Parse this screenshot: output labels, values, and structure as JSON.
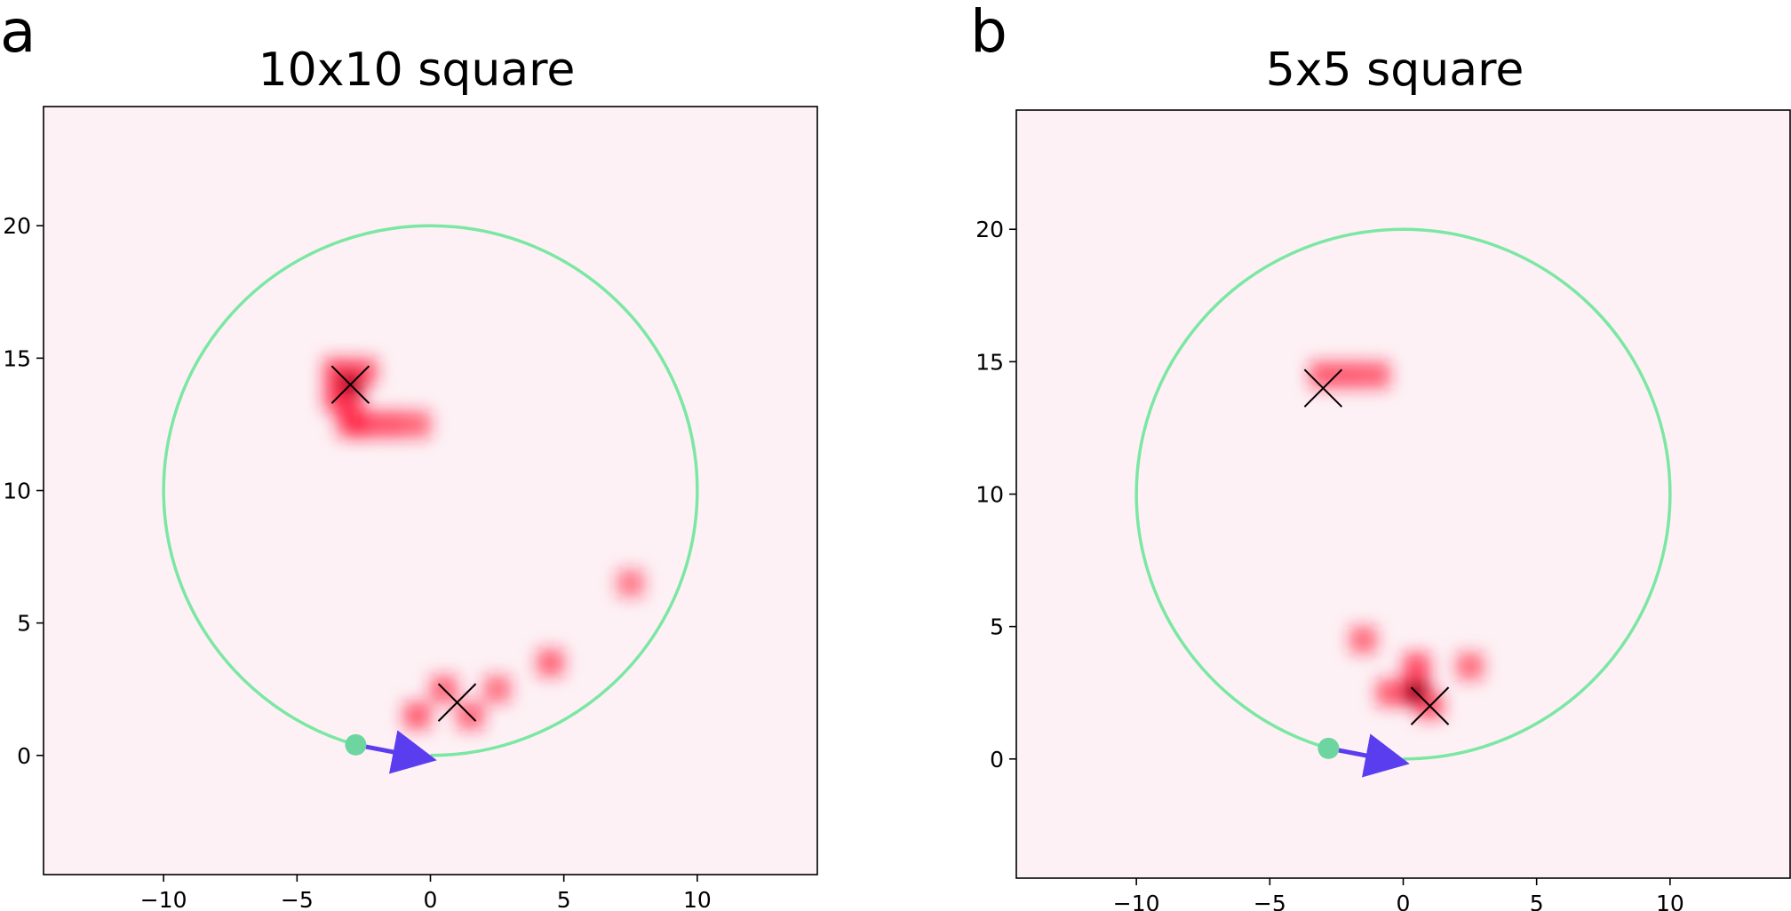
{
  "colors": {
    "background": "#fdf1f5",
    "heat": "#ff1a3c",
    "heat_dark": "#1a0004",
    "circle": "#7be7a3",
    "start_dot": "#6dd6a0",
    "arrow": "#5b3df0",
    "marker": "#000000"
  },
  "chart_data": [
    {
      "type": "heatmap",
      "panel": "a",
      "title": "10x10 square",
      "xlim": [
        -14.5,
        14.5
      ],
      "ylim": [
        -4.5,
        24.5
      ],
      "xticks": [
        -10,
        -5,
        0,
        5,
        10
      ],
      "yticks": [
        0,
        5,
        10,
        15,
        20
      ],
      "xtick_labels": [
        "−10",
        "−5",
        "0",
        "5",
        "10"
      ],
      "ytick_labels": [
        "0",
        "5",
        "10",
        "15",
        "20"
      ],
      "trajectory": {
        "center": [
          0,
          10
        ],
        "radius": 10,
        "gap_start_angle_deg": -105,
        "gap_end_angle_deg": -90
      },
      "start": [
        -2.8,
        0.4
      ],
      "arrow_to": [
        -0.6,
        0.0
      ],
      "markers": [
        [
          -3.0,
          14.0
        ],
        [
          1.0,
          2.0
        ]
      ],
      "blobs": [
        {
          "x": -3.5,
          "y": 14.5,
          "w": 0.7
        },
        {
          "x": -3.0,
          "y": 14.0,
          "w": 1.0
        },
        {
          "x": -2.5,
          "y": 14.5,
          "w": 0.6
        },
        {
          "x": -3.5,
          "y": 13.5,
          "w": 0.7
        },
        {
          "x": -3.0,
          "y": 13.0,
          "w": 0.6
        },
        {
          "x": -2.5,
          "y": 12.5,
          "w": 0.7
        },
        {
          "x": -1.5,
          "y": 12.5,
          "w": 0.65
        },
        {
          "x": -3.0,
          "y": 12.5,
          "w": 0.55
        },
        {
          "x": -0.5,
          "y": 12.5,
          "w": 0.5
        },
        {
          "x": 0.5,
          "y": 2.5,
          "w": 0.55
        },
        {
          "x": -0.5,
          "y": 1.5,
          "w": 0.6
        },
        {
          "x": 1.5,
          "y": 1.5,
          "w": 0.55
        },
        {
          "x": 2.5,
          "y": 2.5,
          "w": 0.45
        },
        {
          "x": 4.5,
          "y": 3.5,
          "w": 0.55
        },
        {
          "x": 7.5,
          "y": 6.5,
          "w": 0.4
        }
      ]
    },
    {
      "type": "heatmap",
      "panel": "b",
      "title": "5x5 square",
      "xlim": [
        -14.5,
        14.5
      ],
      "ylim": [
        -4.5,
        24.5
      ],
      "xticks": [
        -10,
        -5,
        0,
        5,
        10
      ],
      "yticks": [
        0,
        5,
        10,
        15,
        20
      ],
      "xtick_labels": [
        "−10",
        "−5",
        "0",
        "5",
        "10"
      ],
      "ytick_labels": [
        "0",
        "5",
        "10",
        "15",
        "20"
      ],
      "trajectory": {
        "center": [
          0,
          10
        ],
        "radius": 10,
        "gap_start_angle_deg": -105,
        "gap_end_angle_deg": -90
      },
      "start": [
        -2.8,
        0.4
      ],
      "arrow_to": [
        -0.6,
        0.0
      ],
      "markers": [
        [
          -3.0,
          14.0
        ],
        [
          1.0,
          2.0
        ]
      ],
      "blobs": [
        {
          "x": -3.0,
          "y": 14.5,
          "w": 0.6
        },
        {
          "x": -2.0,
          "y": 14.5,
          "w": 0.6
        },
        {
          "x": -1.0,
          "y": 14.5,
          "w": 0.55
        },
        {
          "x": -1.5,
          "y": 4.5,
          "w": 0.5
        },
        {
          "x": 0.5,
          "y": 3.5,
          "w": 0.7
        },
        {
          "x": 0.5,
          "y": 2.5,
          "w": 1.0
        },
        {
          "x": -0.5,
          "y": 2.5,
          "w": 0.6
        },
        {
          "x": 1.0,
          "y": 2.0,
          "w": 0.6
        },
        {
          "x": 2.5,
          "y": 3.5,
          "w": 0.5
        }
      ]
    }
  ]
}
